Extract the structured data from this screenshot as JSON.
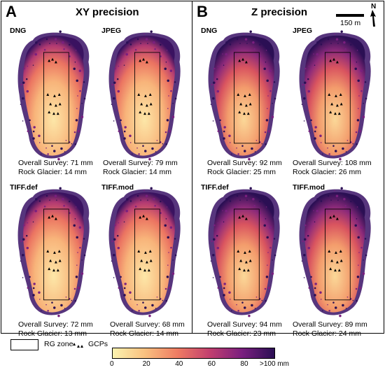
{
  "panels": [
    {
      "letter": "A",
      "title": "XY precision",
      "maps": [
        {
          "label": "DNG",
          "overall": "Overall Survey: 71 mm",
          "rock": "Rock Glacier: 14 mm"
        },
        {
          "label": "JPEG",
          "overall": "Overall Survey: 79 mm",
          "rock": "Rock Glacier: 14 mm"
        },
        {
          "label": "TIFF.def",
          "overall": "Overall Survey: 72 mm",
          "rock": "Rock Glacier: 13 mm"
        },
        {
          "label": "TIFF.mod",
          "overall": "Overall Survey: 68 mm",
          "rock": "Rock Glacier: 14 mm"
        }
      ]
    },
    {
      "letter": "B",
      "title": "Z precision",
      "maps": [
        {
          "label": "DNG",
          "overall": "Overall Survey: 92 mm",
          "rock": "Rock Glacier: 25 mm"
        },
        {
          "label": "JPEG",
          "overall": "Overall Survey: 108 mm",
          "rock": "Rock Glacier: 26 mm"
        },
        {
          "label": "TIFF.def",
          "overall": "Overall Survey: 94 mm",
          "rock": "Rock Glacier: 23 mm"
        },
        {
          "label": "TIFF.mod",
          "overall": "Overall Survey: 89 mm",
          "rock": "Rock Glacier: 24 mm"
        }
      ]
    }
  ],
  "scale": {
    "label": "150 m",
    "north": "N"
  },
  "legend": {
    "rg_zone": "RG zone",
    "gcps": "GCPs",
    "ticks": [
      "0",
      "20",
      "40",
      "60",
      "80",
      ">100 mm"
    ],
    "colors": [
      "#fcf3b0",
      "#f9c07f",
      "#ef7c63",
      "#c23f6f",
      "#7a1f7f",
      "#2b0f54"
    ]
  }
}
